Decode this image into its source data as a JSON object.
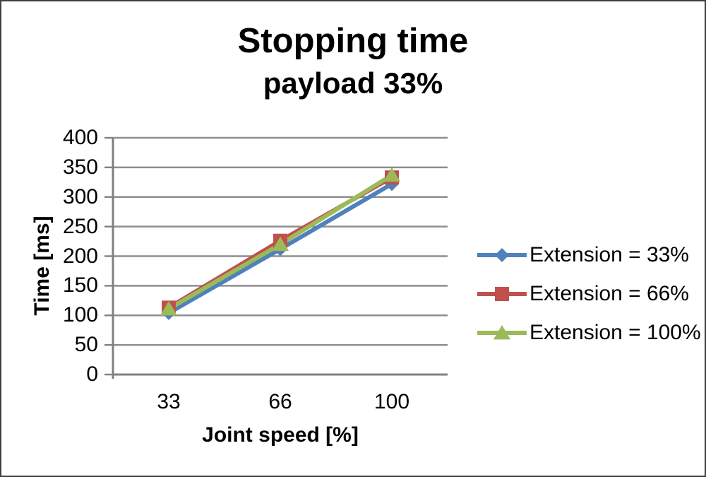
{
  "window": {
    "background": "#ffffff",
    "border_color": "#3f3f3f"
  },
  "chart_data": {
    "type": "line",
    "title": "Stopping time",
    "subtitle": "payload 33%",
    "xlabel": "Joint speed [%]",
    "ylabel": "Time [ms]",
    "categories": [
      "33",
      "66",
      "100"
    ],
    "series": [
      {
        "name": "Extension = 33%",
        "marker": "diamond",
        "color": "#4F81BD",
        "values": [
          104,
          212,
          322
        ]
      },
      {
        "name": "Extension = 66%",
        "marker": "square",
        "color": "#C0504D",
        "values": [
          113,
          226,
          333
        ]
      },
      {
        "name": "Extension = 100%",
        "marker": "triangle",
        "color": "#9BBB59",
        "values": [
          111,
          220,
          337
        ]
      }
    ],
    "ylim": [
      0,
      400
    ],
    "ytick_step": 50,
    "grid": true,
    "legend_position": "right",
    "gridline_color": "#8E8E8E",
    "axis_color": "#808080",
    "text_color": "#000000"
  }
}
